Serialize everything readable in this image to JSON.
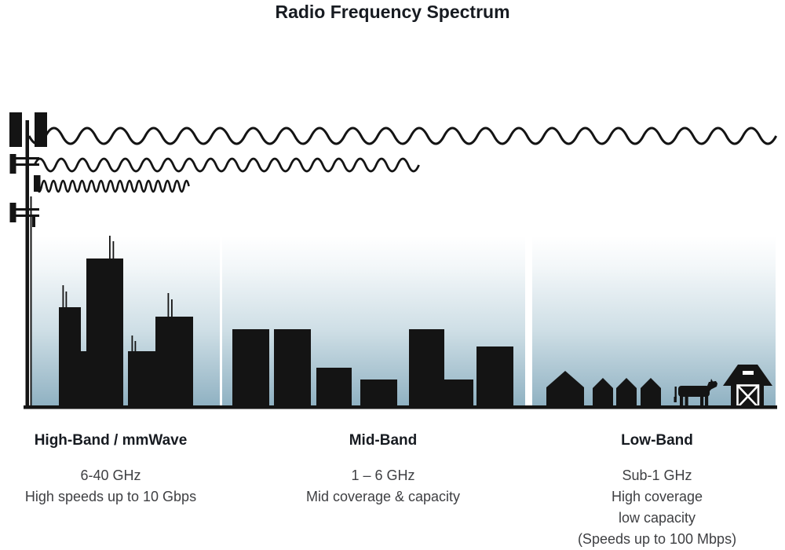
{
  "title": "Radio Frequency Spectrum",
  "bands": [
    {
      "id": "high-band",
      "name": "High-Band / mmWave",
      "specs": [
        "6-40 GHz",
        "High speeds up to 10 Gbps"
      ]
    },
    {
      "id": "mid-band",
      "name": "Mid-Band",
      "specs": [
        "1 – 6 GHz",
        "Mid coverage & capacity"
      ]
    },
    {
      "id": "low-band",
      "name": "Low-Band",
      "specs": [
        "Sub-1 GHz",
        "High coverage",
        "low capacity",
        "(Speeds up to 100 Mbps)"
      ]
    }
  ],
  "scene": {
    "transmitter": "cell tower with antenna panels",
    "waves": [
      {
        "band": "low-band",
        "wavelength": "long",
        "reach": "full width"
      },
      {
        "band": "mid-band",
        "wavelength": "medium",
        "reach": "about half width"
      },
      {
        "band": "high-band",
        "wavelength": "short",
        "reach": "short"
      }
    ],
    "areas": [
      {
        "band": "high-band",
        "depicts": "dense city skyline with rooftop antennas"
      },
      {
        "band": "mid-band",
        "depicts": "mid-rise buildings"
      },
      {
        "band": "low-band",
        "depicts": "houses, cow and barn"
      }
    ]
  },
  "colors": {
    "silhouette": "#141414",
    "sky_top": "#ffffff",
    "sky_mid": "#cfdfe6",
    "sky_bottom": "#8fb1c2",
    "title_text": "#171b21",
    "body_text": "#3e3f42"
  }
}
